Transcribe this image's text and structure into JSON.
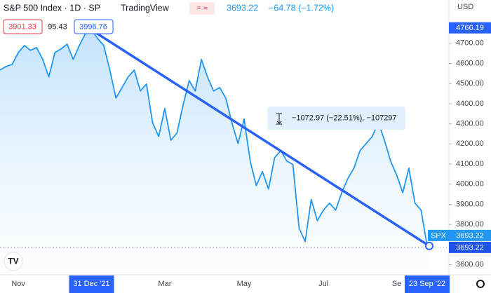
{
  "chart_data": {
    "type": "line",
    "title": "S&P 500 Index · 1D · SP",
    "source": "TradingView",
    "last_price": "3693.22",
    "change": "−64.78 (−1.72%)",
    "legend_boxes": [
      "3901.33",
      "95.43",
      "3996.76"
    ],
    "currency": "USD",
    "measure_label": "−1072.97 (−22.51%), −107297",
    "price_labels": {
      "high": "4766.19",
      "symbol": "SPX",
      "last": "3693.22",
      "cursor": "3693.22"
    },
    "categories": [
      null,
      null,
      null,
      "Nov",
      null,
      null,
      null,
      null,
      null,
      null,
      null,
      null,
      null,
      null,
      null,
      "31 Dec '21",
      null,
      null,
      null,
      null,
      null,
      null,
      null,
      null,
      null,
      null,
      null,
      "Mar",
      null,
      null,
      null,
      null,
      null,
      null,
      null,
      null,
      null,
      null,
      null,
      null,
      "May",
      null,
      null,
      null,
      null,
      null,
      null,
      null,
      null,
      null,
      null,
      null,
      null,
      "Jul",
      null,
      null,
      null,
      null,
      null,
      null,
      null,
      null,
      null,
      null,
      null,
      "Se",
      null,
      null,
      null,
      null,
      "23 Sep '22"
    ],
    "series": [
      {
        "name": "SPX",
        "color": "#2196f3",
        "values": [
          4567,
          4585,
          4595,
          4654,
          4689,
          4665,
          4679,
          4620,
          4533,
          4654,
          4672,
          4696,
          4620,
          4689,
          4748,
          4766.19,
          4724,
          4689,
          4567,
          4428,
          4480,
          4533,
          4567,
          4463,
          4498,
          4306,
          4237,
          4376,
          4219,
          4254,
          4393,
          4515,
          4463,
          4620,
          4533,
          4463,
          4480,
          4428,
          4306,
          4202,
          4324,
          4115,
          3993,
          4063,
          3976,
          4132,
          4167,
          4115,
          4098,
          3784,
          3715,
          3924,
          3819,
          3871,
          3906,
          3871,
          3958,
          4028,
          4080,
          4167,
          4202,
          4237,
          4306,
          4219,
          4115,
          4046,
          3958,
          4080,
          3906,
          3871,
          3693.22
        ]
      }
    ],
    "ylim": [
      3550,
      4915
    ],
    "yticks": [
      {
        "value": 3600,
        "label": "3600.00"
      },
      {
        "value": 3800,
        "label": "3800.00"
      },
      {
        "value": 3900,
        "label": "3900.00"
      },
      {
        "value": 4000,
        "label": "4000.00"
      },
      {
        "value": 4100,
        "label": "4100.00"
      },
      {
        "value": 4200,
        "label": "4200.00"
      },
      {
        "value": 4300,
        "label": "4300.00"
      },
      {
        "value": 4400,
        "label": "4400.00"
      },
      {
        "value": 4500,
        "label": "4500.00"
      },
      {
        "value": 4600,
        "label": "4600.00"
      },
      {
        "value": 4700,
        "label": "4700.00"
      }
    ],
    "trend_line": true,
    "area_fill": true
  }
}
